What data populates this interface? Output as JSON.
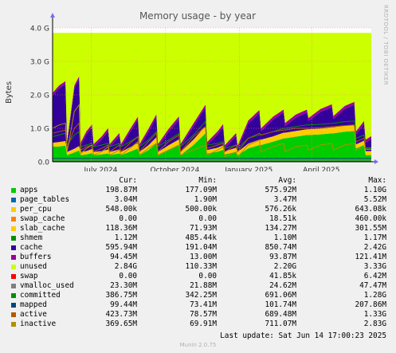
{
  "chart_data": {
    "type": "area",
    "title": "Memory usage - by year",
    "ylabel": "Bytes",
    "xlabel": "",
    "ylim": [
      0,
      4000000000
    ],
    "y_ticks": [
      "0.0",
      "1.0 G",
      "2.0 G",
      "3.0 G",
      "4.0 G"
    ],
    "x_ticks": [
      "July 2024",
      "October 2024",
      "January 2025",
      "April 2025"
    ],
    "x_range": [
      "2024-05-14",
      "2025-06-14"
    ],
    "grid": true,
    "legend_position": "bottom",
    "stack_order": [
      "apps",
      "page_tables",
      "per_cpu",
      "swap_cache",
      "slab_cache",
      "shmem",
      "cache",
      "buffers",
      "unused",
      "swap"
    ],
    "line_series": [
      "vmalloc_used",
      "committed",
      "mapped",
      "active",
      "inactive"
    ],
    "legend_header": [
      "Cur:",
      "Min:",
      "Avg:",
      "Max:"
    ],
    "series": [
      {
        "name": "apps",
        "color": "#00cc00",
        "cur": "198.87M",
        "min": "177.09M",
        "avg": "575.92M",
        "max": "1.10G"
      },
      {
        "name": "page_tables",
        "color": "#0066b3",
        "cur": "3.04M",
        "min": "1.90M",
        "avg": "3.47M",
        "max": "5.52M"
      },
      {
        "name": "per_cpu",
        "color": "#ffcc00",
        "cur": "548.00k",
        "min": "500.00k",
        "avg": "576.26k",
        "max": "643.08k"
      },
      {
        "name": "swap_cache",
        "color": "#ff8000",
        "cur": "0.00",
        "min": "0.00",
        "avg": "18.51k",
        "max": "460.00k"
      },
      {
        "name": "slab_cache",
        "color": "#ffcc00",
        "cur": "118.36M",
        "min": "71.93M",
        "avg": "134.27M",
        "max": "301.55M"
      },
      {
        "name": "shmem",
        "color": "#008f00",
        "cur": "1.12M",
        "min": "485.44k",
        "avg": "1.10M",
        "max": "1.17M"
      },
      {
        "name": "cache",
        "color": "#330099",
        "cur": "595.94M",
        "min": "191.04M",
        "avg": "850.74M",
        "max": "2.42G"
      },
      {
        "name": "buffers",
        "color": "#990099",
        "cur": "94.45M",
        "min": "13.00M",
        "avg": "93.87M",
        "max": "121.41M"
      },
      {
        "name": "unused",
        "color": "#ccff00",
        "cur": "2.84G",
        "min": "110.33M",
        "avg": "2.20G",
        "max": "3.33G"
      },
      {
        "name": "swap",
        "color": "#ff0000",
        "cur": "0.00",
        "min": "0.00",
        "avg": "41.85k",
        "max": "6.42M"
      },
      {
        "name": "vmalloc_used",
        "color": "#808080",
        "cur": "23.30M",
        "min": "21.88M",
        "avg": "24.62M",
        "max": "47.47M"
      },
      {
        "name": "committed",
        "color": "#008f00",
        "cur": "386.75M",
        "min": "342.25M",
        "avg": "691.06M",
        "max": "1.28G"
      },
      {
        "name": "mapped",
        "color": "#00487d",
        "cur": "99.44M",
        "min": "73.41M",
        "avg": "101.74M",
        "max": "207.86M"
      },
      {
        "name": "active",
        "color": "#b35a00",
        "cur": "423.73M",
        "min": "78.57M",
        "avg": "689.48M",
        "max": "1.33G"
      },
      {
        "name": "inactive",
        "color": "#b38f00",
        "cur": "369.65M",
        "min": "69.91M",
        "avg": "711.07M",
        "max": "2.83G"
      }
    ],
    "samples": {
      "dates": [
        "2024-05-14",
        "2024-05-22",
        "2024-05-30",
        "2024-06-01",
        "2024-06-10",
        "2024-06-16",
        "2024-06-18",
        "2024-06-25",
        "2024-07-02",
        "2024-07-04",
        "2024-07-14",
        "2024-07-22",
        "2024-07-24",
        "2024-08-05",
        "2024-08-07",
        "2024-08-18",
        "2024-08-28",
        "2024-08-30",
        "2024-09-10",
        "2024-09-20",
        "2024-09-22",
        "2024-10-05",
        "2024-10-18",
        "2024-10-20",
        "2024-11-05",
        "2024-11-20",
        "2024-11-22",
        "2024-12-05",
        "2024-12-12",
        "2024-12-14",
        "2024-12-28",
        "2024-12-30",
        "2025-01-12",
        "2025-01-26",
        "2025-01-28",
        "2025-02-12",
        "2025-02-25",
        "2025-02-27",
        "2025-03-12",
        "2025-03-26",
        "2025-03-28",
        "2025-04-12",
        "2025-04-26",
        "2025-04-28",
        "2025-05-12",
        "2025-05-24",
        "2025-05-26",
        "2025-06-05",
        "2025-06-07",
        "2025-06-14"
      ],
      "apps": [
        450000000.0,
        460000000.0,
        480000000.0,
        200000000.0,
        280000000.0,
        340000000.0,
        200000000.0,
        220000000.0,
        260000000.0,
        200000000.0,
        220000000.0,
        250000000.0,
        200000000.0,
        250000000.0,
        200000000.0,
        300000000.0,
        400000000.0,
        200000000.0,
        350000000.0,
        550000000.0,
        200000000.0,
        350000000.0,
        500000000.0,
        200000000.0,
        500000000.0,
        850000000.0,
        250000000.0,
        300000000.0,
        360000000.0,
        220000000.0,
        300000000.0,
        200000000.0,
        400000000.0,
        500000000.0,
        500000000.0,
        600000000.0,
        700000000.0,
        700000000.0,
        750000000.0,
        800000000.0,
        800000000.0,
        820000000.0,
        850000000.0,
        850000000.0,
        900000000.0,
        920000000.0,
        400000000.0,
        500000000.0,
        200000000.0,
        200000000.0
      ],
      "slab_cache": [
        120000000.0,
        130000000.0,
        140000000.0,
        90000000.0,
        110000000.0,
        130000000.0,
        90000000.0,
        100000000.0,
        120000000.0,
        90000000.0,
        100000000.0,
        120000000.0,
        90000000.0,
        120000000.0,
        90000000.0,
        130000000.0,
        160000000.0,
        90000000.0,
        140000000.0,
        180000000.0,
        90000000.0,
        140000000.0,
        170000000.0,
        90000000.0,
        160000000.0,
        220000000.0,
        100000000.0,
        120000000.0,
        130000000.0,
        90000000.0,
        120000000.0,
        90000000.0,
        140000000.0,
        160000000.0,
        160000000.0,
        160000000.0,
        170000000.0,
        170000000.0,
        170000000.0,
        170000000.0,
        170000000.0,
        170000000.0,
        180000000.0,
        180000000.0,
        180000000.0,
        180000000.0,
        120000000.0,
        130000000.0,
        120000000.0,
        120000000.0
      ],
      "cache": [
        1400000000.0,
        1600000000.0,
        1700000000.0,
        250000000.0,
        1800000000.0,
        2000000000.0,
        200000000.0,
        500000000.0,
        650000000.0,
        150000000.0,
        350000000.0,
        550000000.0,
        150000000.0,
        400000000.0,
        150000000.0,
        450000000.0,
        700000000.0,
        150000000.0,
        400000000.0,
        600000000.0,
        150000000.0,
        400000000.0,
        600000000.0,
        150000000.0,
        400000000.0,
        550000000.0,
        150000000.0,
        400000000.0,
        550000000.0,
        100000000.0,
        350000000.0,
        100000000.0,
        600000000.0,
        800000000.0,
        250000000.0,
        500000000.0,
        600000000.0,
        200000000.0,
        400000000.0,
        500000000.0,
        250000000.0,
        500000000.0,
        600000000.0,
        250000000.0,
        500000000.0,
        600000000.0,
        300000000.0,
        500000000.0,
        250000000.0,
        360000000.0
      ],
      "buffers": [
        90000000.0,
        90000000.0,
        90000000.0,
        90000000.0,
        90000000.0,
        90000000.0,
        90000000.0,
        90000000.0,
        90000000.0,
        90000000.0,
        90000000.0,
        90000000.0,
        90000000.0,
        90000000.0,
        90000000.0,
        90000000.0,
        90000000.0,
        90000000.0,
        90000000.0,
        90000000.0,
        90000000.0,
        90000000.0,
        90000000.0,
        90000000.0,
        90000000.0,
        90000000.0,
        90000000.0,
        90000000.0,
        90000000.0,
        90000000.0,
        90000000.0,
        90000000.0,
        90000000.0,
        90000000.0,
        90000000.0,
        90000000.0,
        90000000.0,
        90000000.0,
        90000000.0,
        90000000.0,
        90000000.0,
        90000000.0,
        90000000.0,
        90000000.0,
        90000000.0,
        90000000.0,
        90000000.0,
        90000000.0,
        90000000.0,
        90000000.0
      ],
      "committed": [
        750000000.0,
        800000000.0,
        850000000.0,
        500000000.0,
        800000000.0,
        900000000.0,
        450000000.0,
        500000000.0,
        550000000.0,
        450000000.0,
        500000000.0,
        550000000.0,
        450000000.0,
        550000000.0,
        450000000.0,
        600000000.0,
        750000000.0,
        450000000.0,
        650000000.0,
        900000000.0,
        450000000.0,
        650000000.0,
        850000000.0,
        450000000.0,
        800000000.0,
        1200000000.0,
        500000000.0,
        550000000.0,
        600000000.0,
        400000000.0,
        500000000.0,
        400000000.0,
        700000000.0,
        800000000.0,
        800000000.0,
        900000000.0,
        1000000000.0,
        1000000000.0,
        1050000000.0,
        1100000000.0,
        1100000000.0,
        1120000000.0,
        1150000000.0,
        1150000000.0,
        1200000000.0,
        1220000000.0,
        700000000.0,
        800000000.0,
        390000000.0,
        390000000.0
      ],
      "active": [
        850000000.0,
        900000000.0,
        950000000.0,
        400000000.0,
        1000000000.0,
        1150000000.0,
        350000000.0,
        450000000.0,
        500000000.0,
        300000000.0,
        400000000.0,
        500000000.0,
        300000000.0,
        500000000.0,
        300000000.0,
        550000000.0,
        750000000.0,
        300000000.0,
        600000000.0,
        850000000.0,
        300000000.0,
        600000000.0,
        800000000.0,
        300000000.0,
        750000000.0,
        1050000000.0,
        400000000.0,
        500000000.0,
        550000000.0,
        300000000.0,
        500000000.0,
        300000000.0,
        700000000.0,
        850000000.0,
        800000000.0,
        900000000.0,
        950000000.0,
        950000000.0,
        1000000000.0,
        1000000000.0,
        1000000000.0,
        1020000000.0,
        1050000000.0,
        1050000000.0,
        1080000000.0,
        1100000000.0,
        600000000.0,
        700000000.0,
        420000000.0,
        420000000.0
      ],
      "inactive": [
        1000000000.0,
        1100000000.0,
        1150000000.0,
        300000000.0,
        1500000000.0,
        1700000000.0,
        250000000.0,
        400000000.0,
        500000000.0,
        200000000.0,
        300000000.0,
        450000000.0,
        200000000.0,
        350000000.0,
        200000000.0,
        400000000.0,
        600000000.0,
        200000000.0,
        400000000.0,
        550000000.0,
        200000000.0,
        350000000.0,
        500000000.0,
        200000000.0,
        350000000.0,
        500000000.0,
        200000000.0,
        350000000.0,
        450000000.0,
        150000000.0,
        300000000.0,
        150000000.0,
        500000000.0,
        650000000.0,
        300000000.0,
        450000000.0,
        550000000.0,
        300000000.0,
        450000000.0,
        500000000.0,
        350000000.0,
        500000000.0,
        550000000.0,
        350000000.0,
        500000000.0,
        550000000.0,
        350000000.0,
        450000000.0,
        370000000.0,
        370000000.0
      ]
    }
  },
  "footer": {
    "last_update": "Last update: Sat Jun 14 17:00:23 2025",
    "munin_version": "Munin 2.0.75",
    "rrdtool": "RRDTOOL / TOBI OETIKER"
  }
}
